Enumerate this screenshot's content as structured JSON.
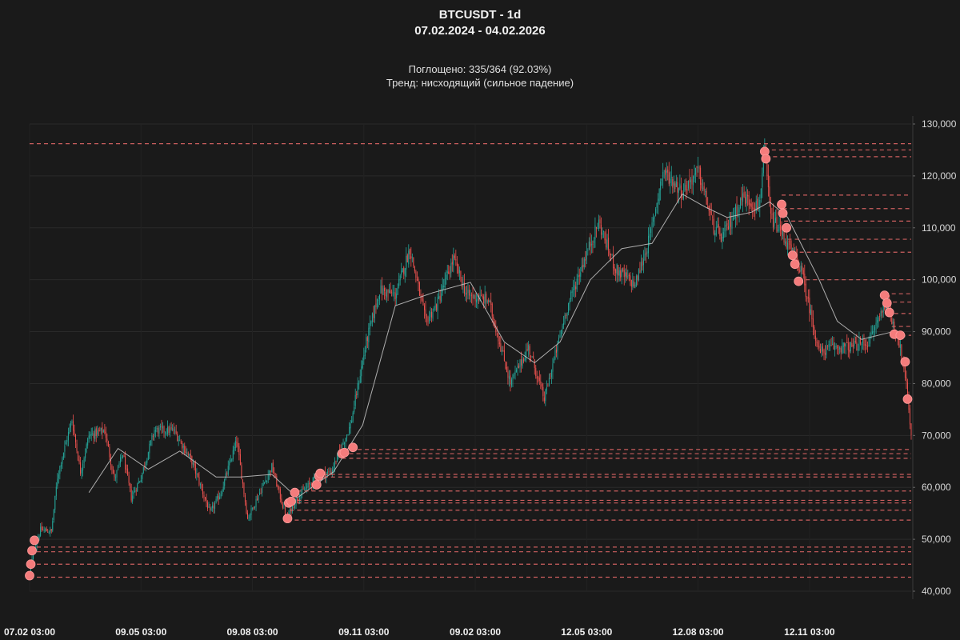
{
  "header": {
    "title": "BTCUSDT - 1d",
    "subtitle": "07.02.2024 - 04.02.2026",
    "absorbed": "Поглощено: 335/364 (92.03%)",
    "trend": "Тренд: нисходящий (сильное падение)"
  },
  "colors": {
    "background": "#1a1a1a",
    "up": "#26a69a",
    "down": "#ef5350",
    "ma": "#c8c8c8",
    "level": "#e06666",
    "marker": "#f47c7c",
    "grid": "#2a2a2a",
    "text": "#e6e6e6"
  },
  "chart_data": {
    "type": "candlestick",
    "symbol": "BTCUSDT",
    "timeframe": "1d",
    "date_range": [
      "2024-02-07",
      "2026-02-04"
    ],
    "y_axis": {
      "position": "right",
      "ylim": [
        35000,
        132000
      ],
      "ticks": [
        40000,
        50000,
        60000,
        70000,
        80000,
        90000,
        100000,
        110000,
        120000,
        130000
      ],
      "tick_labels": [
        "40,000",
        "50,000",
        "60,000",
        "70,000",
        "80,000",
        "90,000",
        "100,000",
        "110,000",
        "120,000",
        "130,000"
      ]
    },
    "x_axis": {
      "tick_labels": [
        "07.02 03:00",
        "09.05 03:00",
        "09.08 03:00",
        "09.11 03:00",
        "09.02 03:00",
        "12.05 03:00",
        "12.08 03:00",
        "12.11 03:00"
      ],
      "tick_dates": [
        "2024-02-07",
        "2024-05-09",
        "2024-08-09",
        "2024-11-09",
        "2025-02-09",
        "2025-05-12",
        "2025-08-12",
        "2025-11-12"
      ]
    },
    "grid": true,
    "close_path": [
      [
        "2024-02-07",
        43000
      ],
      [
        "2024-02-10",
        47500
      ],
      [
        "2024-02-16",
        51800
      ],
      [
        "2024-02-25",
        51500
      ],
      [
        "2024-03-01",
        62000
      ],
      [
        "2024-03-05",
        66000
      ],
      [
        "2024-03-13",
        73000
      ],
      [
        "2024-03-20",
        63000
      ],
      [
        "2024-03-27",
        70000
      ],
      [
        "2024-04-09",
        71000
      ],
      [
        "2024-04-17",
        61500
      ],
      [
        "2024-04-24",
        66500
      ],
      [
        "2024-05-01",
        58000
      ],
      [
        "2024-05-09",
        62000
      ],
      [
        "2024-05-20",
        71000
      ],
      [
        "2024-06-05",
        71000
      ],
      [
        "2024-06-20",
        65000
      ],
      [
        "2024-07-05",
        55000
      ],
      [
        "2024-07-14",
        59000
      ],
      [
        "2024-07-27",
        69000
      ],
      [
        "2024-08-05",
        54000
      ],
      [
        "2024-08-15",
        59000
      ],
      [
        "2024-08-25",
        64000
      ],
      [
        "2024-09-06",
        54000
      ],
      [
        "2024-09-15",
        58000
      ],
      [
        "2024-10-01",
        62000
      ],
      [
        "2024-10-13",
        63000
      ],
      [
        "2024-10-29",
        72000
      ],
      [
        "2024-11-11",
        88000
      ],
      [
        "2024-11-22",
        98000
      ],
      [
        "2024-12-05",
        97000
      ],
      [
        "2024-12-17",
        106000
      ],
      [
        "2024-12-30",
        92000
      ],
      [
        "2025-01-08",
        95000
      ],
      [
        "2025-01-22",
        104000
      ],
      [
        "2025-02-02",
        97000
      ],
      [
        "2025-02-20",
        96000
      ],
      [
        "2025-03-10",
        80000
      ],
      [
        "2025-03-25",
        87000
      ],
      [
        "2025-04-07",
        77000
      ],
      [
        "2025-04-25",
        94000
      ],
      [
        "2025-05-10",
        104000
      ],
      [
        "2025-05-22",
        111000
      ],
      [
        "2025-06-05",
        102000
      ],
      [
        "2025-06-21",
        99000
      ],
      [
        "2025-07-03",
        108000
      ],
      [
        "2025-07-14",
        121000
      ],
      [
        "2025-07-30",
        117000
      ],
      [
        "2025-08-12",
        121000
      ],
      [
        "2025-08-25",
        110000
      ],
      [
        "2025-09-01",
        108000
      ],
      [
        "2025-09-18",
        116000
      ],
      [
        "2025-10-01",
        114000
      ],
      [
        "2025-10-06",
        124500
      ],
      [
        "2025-10-11",
        112000
      ],
      [
        "2025-10-20",
        109000
      ],
      [
        "2025-11-05",
        102000
      ],
      [
        "2025-11-20",
        86000
      ],
      [
        "2025-12-01",
        87000
      ],
      [
        "2025-12-15",
        87000
      ],
      [
        "2025-12-31",
        88000
      ],
      [
        "2026-01-14",
        96000
      ],
      [
        "2026-01-25",
        88000
      ],
      [
        "2026-02-01",
        78000
      ],
      [
        "2026-02-04",
        70000
      ]
    ],
    "moving_average_path": [
      [
        "2024-03-27",
        59000
      ],
      [
        "2024-04-20",
        67500
      ],
      [
        "2024-05-15",
        63500
      ],
      [
        "2024-06-10",
        67000
      ],
      [
        "2024-07-10",
        62000
      ],
      [
        "2024-07-30",
        62000
      ],
      [
        "2024-08-25",
        62500
      ],
      [
        "2024-09-15",
        58000
      ],
      [
        "2024-10-15",
        63000
      ],
      [
        "2024-11-08",
        72000
      ],
      [
        "2024-12-05",
        95000
      ],
      [
        "2025-01-05",
        97500
      ],
      [
        "2025-02-05",
        99500
      ],
      [
        "2025-03-05",
        88000
      ],
      [
        "2025-03-30",
        84000
      ],
      [
        "2025-04-20",
        88000
      ],
      [
        "2025-05-15",
        100000
      ],
      [
        "2025-06-10",
        106000
      ],
      [
        "2025-07-05",
        107000
      ],
      [
        "2025-07-30",
        116500
      ],
      [
        "2025-08-18",
        114000
      ],
      [
        "2025-09-05",
        112000
      ],
      [
        "2025-09-25",
        113000
      ],
      [
        "2025-10-10",
        115000
      ],
      [
        "2025-10-25",
        112000
      ],
      [
        "2025-11-20",
        100000
      ],
      [
        "2025-12-05",
        92000
      ],
      [
        "2025-12-25",
        88500
      ],
      [
        "2026-01-20",
        90000
      ],
      [
        "2026-01-30",
        89000
      ]
    ],
    "levels": [
      {
        "price": 126200,
        "from": "2024-02-07"
      },
      {
        "price": 125000,
        "from": "2025-10-06"
      },
      {
        "price": 123700,
        "from": "2025-10-07"
      },
      {
        "price": 116300,
        "from": "2025-10-20"
      },
      {
        "price": 113700,
        "from": "2025-10-21"
      },
      {
        "price": 111300,
        "from": "2025-10-22"
      },
      {
        "price": 107800,
        "from": "2025-10-25"
      },
      {
        "price": 105300,
        "from": "2025-10-29"
      },
      {
        "price": 100000,
        "from": "2025-11-03"
      },
      {
        "price": 97300,
        "from": "2026-01-13"
      },
      {
        "price": 95700,
        "from": "2026-01-14"
      },
      {
        "price": 93500,
        "from": "2026-01-15"
      },
      {
        "price": 91000,
        "from": "2026-01-19"
      },
      {
        "price": 89300,
        "from": "2026-01-21"
      },
      {
        "price": 67300,
        "from": "2024-10-29"
      },
      {
        "price": 66500,
        "from": "2024-10-22"
      },
      {
        "price": 65600,
        "from": "2024-10-22"
      },
      {
        "price": 62500,
        "from": "2024-10-01"
      },
      {
        "price": 62000,
        "from": "2024-10-01"
      },
      {
        "price": 59300,
        "from": "2024-09-15"
      },
      {
        "price": 57500,
        "from": "2024-09-09"
      },
      {
        "price": 57000,
        "from": "2024-09-09"
      },
      {
        "price": 55600,
        "from": "2024-09-09"
      },
      {
        "price": 53700,
        "from": "2024-09-07"
      },
      {
        "price": 48500,
        "from": "2024-02-07"
      },
      {
        "price": 47600,
        "from": "2024-02-07"
      },
      {
        "price": 45200,
        "from": "2024-02-07"
      },
      {
        "price": 42700,
        "from": "2024-02-07"
      }
    ],
    "markers": [
      {
        "date": "2024-02-07",
        "price": 43000
      },
      {
        "date": "2024-02-08",
        "price": 45200
      },
      {
        "date": "2024-02-09",
        "price": 47800
      },
      {
        "date": "2024-02-11",
        "price": 49800
      },
      {
        "date": "2024-09-07",
        "price": 54000
      },
      {
        "date": "2024-09-08",
        "price": 57000
      },
      {
        "date": "2024-09-10",
        "price": 57300
      },
      {
        "date": "2024-09-13",
        "price": 59000
      },
      {
        "date": "2024-10-01",
        "price": 60500
      },
      {
        "date": "2024-10-03",
        "price": 62200
      },
      {
        "date": "2024-10-04",
        "price": 62700
      },
      {
        "date": "2024-10-22",
        "price": 66500
      },
      {
        "date": "2024-10-24",
        "price": 66700
      },
      {
        "date": "2024-10-31",
        "price": 67700
      },
      {
        "date": "2025-10-06",
        "price": 124700
      },
      {
        "date": "2025-10-07",
        "price": 123300
      },
      {
        "date": "2025-10-20",
        "price": 114500
      },
      {
        "date": "2025-10-21",
        "price": 112800
      },
      {
        "date": "2025-10-24",
        "price": 110000
      },
      {
        "date": "2025-10-29",
        "price": 104700
      },
      {
        "date": "2025-10-31",
        "price": 103000
      },
      {
        "date": "2025-11-03",
        "price": 99700
      },
      {
        "date": "2026-01-13",
        "price": 97000
      },
      {
        "date": "2026-01-15",
        "price": 95500
      },
      {
        "date": "2026-01-17",
        "price": 93700
      },
      {
        "date": "2026-01-21",
        "price": 89500
      },
      {
        "date": "2026-01-26",
        "price": 89300
      },
      {
        "date": "2026-01-30",
        "price": 84200
      },
      {
        "date": "2026-02-01",
        "price": 77000
      }
    ]
  }
}
